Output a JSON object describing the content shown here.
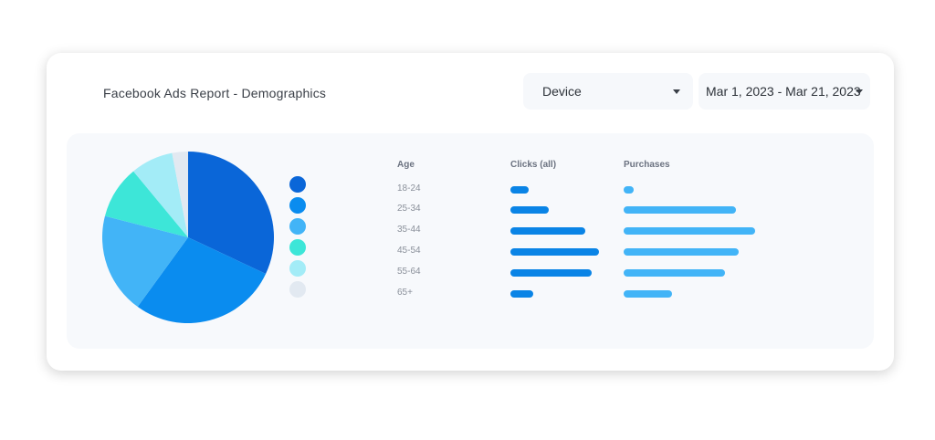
{
  "header": {
    "title": "Facebook Ads Report - Demographics"
  },
  "filters": {
    "device": {
      "label": "Device"
    },
    "date_range": {
      "label": "Mar 1, 2023 - Mar 21, 2023"
    }
  },
  "colors": {
    "clicks_bar": "#0a84e6",
    "purchases_bar": "#42b4f7"
  },
  "chart_data": [
    {
      "type": "pie",
      "categories": [
        "18-24",
        "25-34",
        "35-44",
        "45-54",
        "55-64",
        "65+"
      ],
      "values": [
        32,
        28,
        19,
        10,
        8,
        3
      ],
      "colors": [
        "#0a66d8",
        "#0a8cef",
        "#42b4f7",
        "#3de6d8",
        "#a3ecf7",
        "#e2e9f1"
      ]
    },
    {
      "type": "table",
      "columns": [
        "Age",
        "Clicks (all)",
        "Purchases"
      ],
      "rows": [
        {
          "age": "18-24",
          "clicks": 20,
          "purchases": 11
        },
        {
          "age": "25-34",
          "clicks": 42,
          "purchases": 123
        },
        {
          "age": "35-44",
          "clicks": 82,
          "purchases": 144
        },
        {
          "age": "45-54",
          "clicks": 97,
          "purchases": 126
        },
        {
          "age": "55-64",
          "clicks": 89,
          "purchases": 111
        },
        {
          "age": "65+",
          "clicks": 25,
          "purchases": 53
        }
      ]
    }
  ]
}
